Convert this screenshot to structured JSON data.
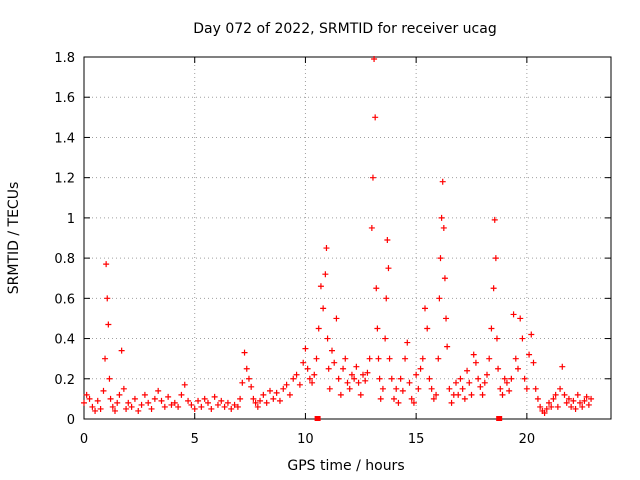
{
  "chart_data": {
    "type": "scatter",
    "title": "Day 072 of 2022, SRMTID for receiver ucag",
    "xlabel": "GPS time / hours",
    "ylabel": "SRMTID / TECUs",
    "xlim": [
      0,
      23.8
    ],
    "ylim": [
      0,
      1.8
    ],
    "x_ticks": [
      0,
      5,
      10,
      15,
      20
    ],
    "x_tick_labels": [
      "0",
      "5",
      "10",
      "15",
      "20"
    ],
    "y_ticks": [
      0,
      0.2,
      0.4,
      0.6,
      0.8,
      1.0,
      1.2,
      1.4,
      1.6,
      1.8
    ],
    "y_tick_labels": [
      "0",
      "0.2",
      "0.4",
      "0.6",
      "0.8",
      "1",
      "1.2",
      "1.4",
      "1.6",
      "1.8"
    ],
    "grid": true,
    "marker": "+",
    "color": "#ff0000",
    "series": [
      {
        "name": "SRMTID",
        "x": [
          0.0,
          0.12,
          0.25,
          0.38,
          0.5,
          0.62,
          0.75,
          0.88,
          0.95,
          1.0,
          1.05,
          1.1,
          1.15,
          1.2,
          1.3,
          1.4,
          1.5,
          1.6,
          1.7,
          1.8,
          1.9,
          2.0,
          2.15,
          2.3,
          2.45,
          2.6,
          2.75,
          2.9,
          3.05,
          3.2,
          3.35,
          3.5,
          3.65,
          3.8,
          3.95,
          4.1,
          4.25,
          4.4,
          4.55,
          4.7,
          4.85,
          5.0,
          5.15,
          5.3,
          5.45,
          5.6,
          5.75,
          5.9,
          6.05,
          6.2,
          6.35,
          6.5,
          6.65,
          6.8,
          6.95,
          7.05,
          7.15,
          7.25,
          7.35,
          7.45,
          7.55,
          7.65,
          7.75,
          7.85,
          7.95,
          8.1,
          8.25,
          8.4,
          8.55,
          8.7,
          8.85,
          9.0,
          9.15,
          9.3,
          9.45,
          9.6,
          9.75,
          9.9,
          10.0,
          10.1,
          10.2,
          10.3,
          10.4,
          10.5,
          10.6,
          10.7,
          10.8,
          10.9,
          10.95,
          11.0,
          11.05,
          11.1,
          11.2,
          11.3,
          11.4,
          11.5,
          11.6,
          11.7,
          11.8,
          11.9,
          12.0,
          12.1,
          12.2,
          12.3,
          12.4,
          12.5,
          12.6,
          12.7,
          12.8,
          12.9,
          13.0,
          13.05,
          13.1,
          13.15,
          13.2,
          13.25,
          13.3,
          13.35,
          13.4,
          13.5,
          13.6,
          13.65,
          13.7,
          13.75,
          13.8,
          13.9,
          14.0,
          14.1,
          14.2,
          14.3,
          14.4,
          14.5,
          14.6,
          14.7,
          14.8,
          14.9,
          15.0,
          15.1,
          15.2,
          15.3,
          15.4,
          15.5,
          15.6,
          15.7,
          15.8,
          15.9,
          16.0,
          16.05,
          16.1,
          16.15,
          16.2,
          16.25,
          16.3,
          16.35,
          16.4,
          16.5,
          16.6,
          16.7,
          16.8,
          16.9,
          17.0,
          17.1,
          17.2,
          17.3,
          17.4,
          17.5,
          17.6,
          17.7,
          17.8,
          17.9,
          18.0,
          18.1,
          18.2,
          18.3,
          18.4,
          18.5,
          18.55,
          18.6,
          18.65,
          18.7,
          18.8,
          18.9,
          19.0,
          19.1,
          19.2,
          19.3,
          19.4,
          19.5,
          19.6,
          19.7,
          19.8,
          19.9,
          20.0,
          20.1,
          20.2,
          20.3,
          20.4,
          20.5,
          20.6,
          20.7,
          20.8,
          20.9,
          21.0,
          21.1,
          21.2,
          21.3,
          21.4,
          21.5,
          21.6,
          21.7,
          21.8,
          21.9,
          22.0,
          22.1,
          22.2,
          22.3,
          22.4,
          22.5,
          22.6,
          22.7,
          22.8,
          22.9
        ],
        "y": [
          0.08,
          0.12,
          0.1,
          0.06,
          0.04,
          0.09,
          0.05,
          0.14,
          0.3,
          0.77,
          0.6,
          0.47,
          0.2,
          0.1,
          0.06,
          0.04,
          0.08,
          0.12,
          0.34,
          0.15,
          0.05,
          0.08,
          0.06,
          0.1,
          0.04,
          0.07,
          0.12,
          0.08,
          0.05,
          0.1,
          0.14,
          0.09,
          0.06,
          0.11,
          0.07,
          0.08,
          0.06,
          0.12,
          0.17,
          0.09,
          0.07,
          0.05,
          0.09,
          0.06,
          0.1,
          0.08,
          0.05,
          0.11,
          0.07,
          0.09,
          0.06,
          0.08,
          0.05,
          0.07,
          0.06,
          0.1,
          0.18,
          0.33,
          0.25,
          0.2,
          0.16,
          0.1,
          0.08,
          0.06,
          0.09,
          0.12,
          0.08,
          0.14,
          0.1,
          0.13,
          0.09,
          0.15,
          0.17,
          0.12,
          0.2,
          0.22,
          0.17,
          0.28,
          0.35,
          0.25,
          0.2,
          0.18,
          0.22,
          0.3,
          0.45,
          0.66,
          0.55,
          0.72,
          0.85,
          0.4,
          0.25,
          0.15,
          0.34,
          0.28,
          0.5,
          0.2,
          0.12,
          0.25,
          0.3,
          0.18,
          0.15,
          0.22,
          0.2,
          0.26,
          0.18,
          0.12,
          0.22,
          0.19,
          0.23,
          0.3,
          0.95,
          1.2,
          1.79,
          1.5,
          0.65,
          0.45,
          0.3,
          0.2,
          0.1,
          0.15,
          0.4,
          0.6,
          0.89,
          0.75,
          0.3,
          0.2,
          0.1,
          0.15,
          0.08,
          0.2,
          0.14,
          0.3,
          0.38,
          0.18,
          0.1,
          0.08,
          0.22,
          0.15,
          0.25,
          0.3,
          0.55,
          0.45,
          0.2,
          0.15,
          0.1,
          0.12,
          0.3,
          0.6,
          0.8,
          1.0,
          1.18,
          0.95,
          0.7,
          0.5,
          0.36,
          0.15,
          0.08,
          0.12,
          0.18,
          0.12,
          0.2,
          0.15,
          0.1,
          0.24,
          0.18,
          0.12,
          0.32,
          0.28,
          0.2,
          0.16,
          0.12,
          0.18,
          0.22,
          0.3,
          0.45,
          0.65,
          0.99,
          0.8,
          0.4,
          0.25,
          0.15,
          0.12,
          0.2,
          0.18,
          0.14,
          0.2,
          0.52,
          0.3,
          0.25,
          0.5,
          0.4,
          0.2,
          0.15,
          0.32,
          0.42,
          0.28,
          0.15,
          0.1,
          0.06,
          0.04,
          0.03,
          0.05,
          0.08,
          0.06,
          0.1,
          0.12,
          0.06,
          0.15,
          0.26,
          0.12,
          0.08,
          0.1,
          0.06,
          0.09,
          0.05,
          0.12,
          0.08,
          0.06,
          0.09,
          0.11,
          0.07,
          0.1
        ],
        "zero_markers_x": [
          10.55,
          18.75
        ]
      }
    ]
  }
}
